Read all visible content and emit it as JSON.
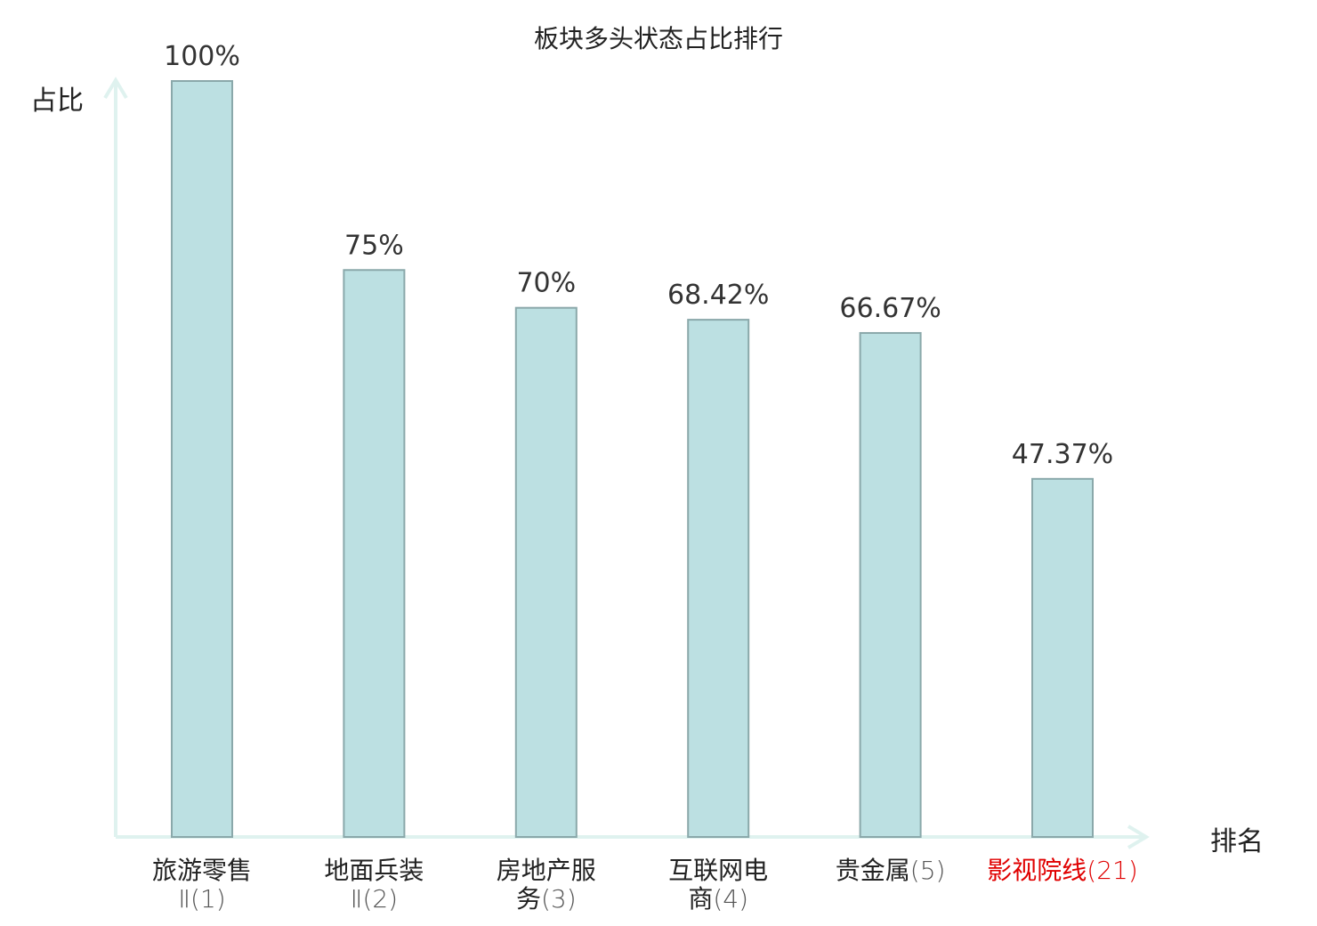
{
  "chart_data": {
    "type": "bar",
    "title": "板块多头状态占比排行",
    "ylabel": "占比",
    "xlabel": "排名",
    "ylim": [
      0,
      100
    ],
    "grid": false,
    "categories": [
      {
        "name": "旅游零售Ⅱ",
        "rank": "(1)",
        "lines": [
          "旅游零售",
          "Ⅱ(1)"
        ],
        "highlight": false
      },
      {
        "name": "地面兵装Ⅱ",
        "rank": "(2)",
        "lines": [
          "地面兵装",
          "Ⅱ(2)"
        ],
        "highlight": false
      },
      {
        "name": "房地产服务",
        "rank": "(3)",
        "lines": [
          "房地产服",
          "务(3)"
        ],
        "highlight": false
      },
      {
        "name": "互联网电商",
        "rank": "(4)",
        "lines": [
          "互联网电",
          "商(4)"
        ],
        "highlight": false
      },
      {
        "name": "贵金属",
        "rank": "(5)",
        "lines": [
          "贵金属(5)"
        ],
        "highlight": false
      },
      {
        "name": "影视院线",
        "rank": "(21)",
        "lines": [
          "影视院线(21)"
        ],
        "highlight": true
      }
    ],
    "values": [
      100,
      75,
      70,
      68.42,
      66.67,
      47.37
    ],
    "value_labels": [
      "100%",
      "75%",
      "70%",
      "68.42%",
      "66.67%",
      "47.37%"
    ],
    "colors": {
      "bar_fill": "#bce0e2",
      "bar_stroke": "#8aa8aa",
      "axis": "#dff2ef",
      "highlight_text": "#e00000"
    }
  }
}
